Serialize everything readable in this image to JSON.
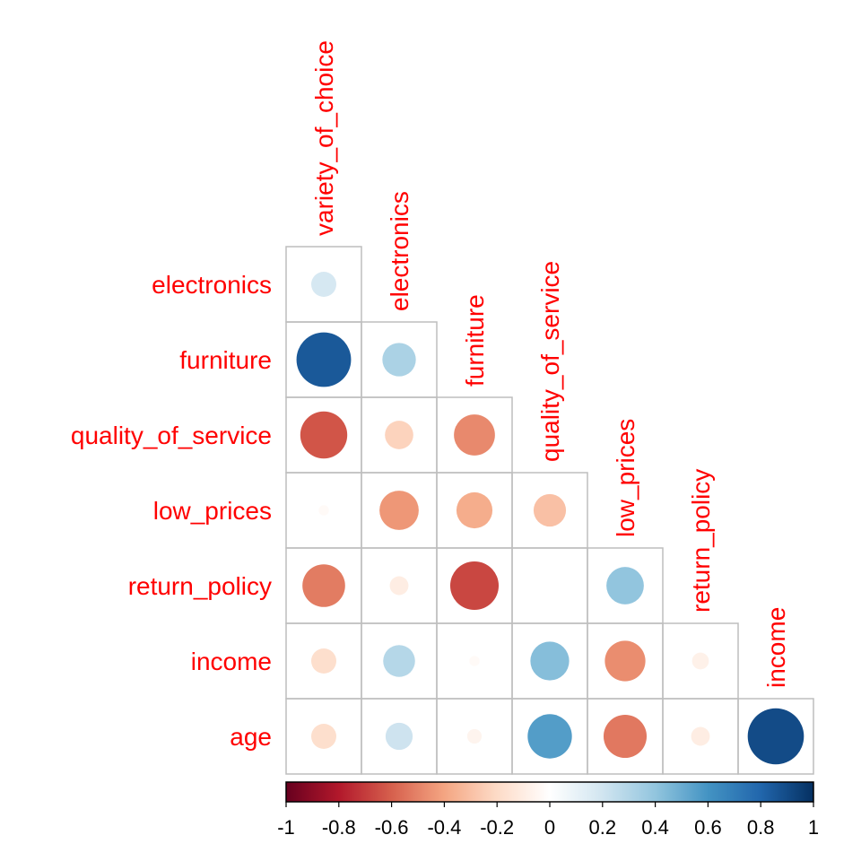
{
  "chart_data": {
    "type": "heatmap",
    "style": "circle",
    "shape": "lower-triangular",
    "title": "",
    "variables": [
      "variety_of_choice",
      "electronics",
      "furniture",
      "quality_of_service",
      "low_prices",
      "return_policy",
      "income",
      "age"
    ],
    "column_labels": [
      "variety_of_choice",
      "electronics",
      "furniture",
      "quality_of_service",
      "low_prices",
      "return_policy",
      "income"
    ],
    "row_labels": [
      "electronics",
      "furniture",
      "quality_of_service",
      "low_prices",
      "return_policy",
      "income",
      "age"
    ],
    "values": [
      [
        0.18,
        null,
        null,
        null,
        null,
        null,
        null
      ],
      [
        0.85,
        0.32,
        null,
        null,
        null,
        null,
        null
      ],
      [
        -0.63,
        -0.23,
        -0.48,
        null,
        null,
        null,
        null
      ],
      [
        -0.03,
        -0.44,
        -0.37,
        -0.3,
        null,
        null,
        null
      ],
      [
        -0.52,
        -0.1,
        -0.67,
        0.0,
        0.4,
        null,
        null
      ],
      [
        -0.18,
        0.29,
        -0.03,
        0.43,
        -0.47,
        -0.08,
        null
      ],
      [
        -0.18,
        0.21,
        -0.06,
        0.56,
        -0.53,
        -0.1,
        0.9
      ]
    ],
    "color_scale": {
      "type": "diverging",
      "range": [
        -1,
        1
      ],
      "low_color": "#67001f",
      "mid_color": "#ffffff",
      "high_color": "#053061",
      "ticks": [
        "-1",
        "-0.8",
        "-0.6",
        "-0.4",
        "-0.2",
        "0",
        "0.2",
        "0.4",
        "0.6",
        "0.8",
        "1"
      ]
    },
    "label_color": "#ff0000",
    "grid": true,
    "grid_color": "#bebebe",
    "legend": "bottom"
  }
}
